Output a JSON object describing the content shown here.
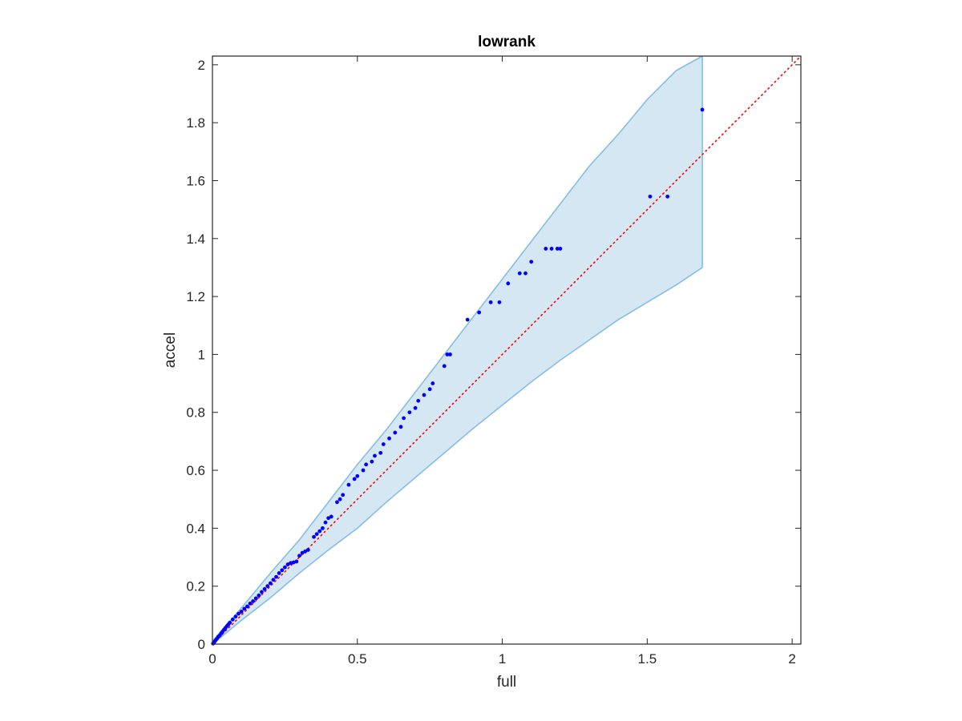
{
  "chart_data": {
    "type": "scatter",
    "title": "lowrank",
    "xlabel": "full",
    "ylabel": "accel",
    "xlim": [
      0,
      2.03
    ],
    "ylim": [
      0,
      2.03
    ],
    "xticks": [
      0,
      0.5,
      1,
      1.5,
      2
    ],
    "xtick_labels": [
      "0",
      "0.5",
      "1",
      "1.5",
      "2"
    ],
    "yticks": [
      0,
      0.2,
      0.4,
      0.6,
      0.8,
      1,
      1.2,
      1.4,
      1.6,
      1.8,
      2
    ],
    "ytick_labels": [
      "0",
      "0.2",
      "0.4",
      "0.6",
      "0.8",
      "1",
      "1.2",
      "1.4",
      "1.6",
      "1.8",
      "2"
    ],
    "grid": false,
    "box": true,
    "colors": {
      "points": "#0000ff",
      "reference_line": "#ff0000",
      "band_fill": "#d6e7f4",
      "band_edge": "#85bde3",
      "axes": "#262626"
    },
    "reference_line": {
      "style": "dotted",
      "x": [
        0,
        2.03
      ],
      "y": [
        0,
        2.03
      ]
    },
    "confidence_band": {
      "x": [
        0,
        0.1,
        0.2,
        0.3,
        0.4,
        0.5,
        0.6,
        0.7,
        0.8,
        0.9,
        1.0,
        1.1,
        1.2,
        1.3,
        1.4,
        1.5,
        1.6,
        1.69
      ],
      "upper": [
        0.01,
        0.125,
        0.245,
        0.36,
        0.49,
        0.62,
        0.74,
        0.87,
        1.0,
        1.13,
        1.26,
        1.39,
        1.52,
        1.65,
        1.76,
        1.88,
        1.98,
        2.03
      ],
      "lower": [
        0,
        0.082,
        0.16,
        0.245,
        0.325,
        0.4,
        0.49,
        0.575,
        0.66,
        0.745,
        0.825,
        0.905,
        0.98,
        1.05,
        1.12,
        1.18,
        1.24,
        1.3
      ]
    },
    "series": [
      {
        "x": [
          0.002,
          0.006,
          0.01,
          0.015,
          0.02,
          0.025,
          0.03,
          0.035,
          0.04,
          0.045,
          0.05,
          0.055,
          0.06,
          0.07,
          0.08,
          0.09,
          0.1,
          0.11,
          0.12,
          0.13,
          0.14,
          0.15,
          0.16,
          0.17,
          0.18,
          0.19,
          0.2,
          0.21,
          0.22,
          0.23,
          0.24,
          0.25,
          0.26,
          0.27,
          0.28,
          0.29,
          0.3,
          0.31,
          0.32,
          0.33,
          0.35,
          0.36,
          0.37,
          0.38,
          0.39,
          0.4,
          0.41,
          0.43,
          0.44,
          0.45,
          0.47,
          0.49,
          0.5,
          0.52,
          0.53,
          0.55,
          0.56,
          0.58,
          0.59,
          0.61,
          0.63,
          0.65,
          0.66,
          0.68,
          0.7,
          0.71,
          0.73,
          0.75,
          0.76,
          0.8,
          0.81,
          0.82,
          0.88,
          0.92,
          0.96,
          0.99,
          1.02,
          1.06,
          1.08,
          1.1,
          1.15,
          1.17,
          1.19,
          1.2,
          1.51,
          1.57,
          1.69
        ],
        "y": [
          0.002,
          0.006,
          0.012,
          0.018,
          0.025,
          0.03,
          0.037,
          0.043,
          0.05,
          0.056,
          0.062,
          0.068,
          0.074,
          0.085,
          0.095,
          0.105,
          0.112,
          0.122,
          0.13,
          0.14,
          0.148,
          0.158,
          0.168,
          0.18,
          0.19,
          0.2,
          0.21,
          0.222,
          0.232,
          0.245,
          0.255,
          0.265,
          0.275,
          0.28,
          0.282,
          0.285,
          0.305,
          0.315,
          0.32,
          0.325,
          0.37,
          0.38,
          0.39,
          0.4,
          0.42,
          0.435,
          0.44,
          0.49,
          0.5,
          0.515,
          0.55,
          0.57,
          0.58,
          0.6,
          0.62,
          0.63,
          0.65,
          0.66,
          0.69,
          0.71,
          0.73,
          0.75,
          0.78,
          0.8,
          0.815,
          0.84,
          0.86,
          0.88,
          0.9,
          0.96,
          1.0,
          1.0,
          1.12,
          1.145,
          1.18,
          1.18,
          1.245,
          1.28,
          1.28,
          1.32,
          1.365,
          1.365,
          1.365,
          1.365,
          1.545,
          1.545,
          1.845
        ]
      }
    ]
  }
}
